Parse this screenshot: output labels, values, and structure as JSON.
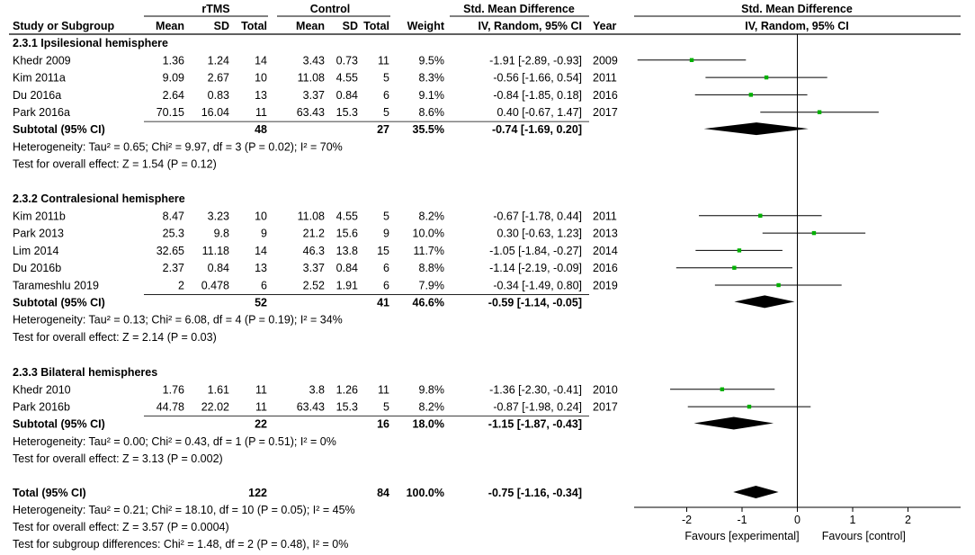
{
  "chart_data": {
    "type": "forest",
    "headers": {
      "group_exp": "rTMS",
      "group_ctrl": "Control",
      "smd_group": "Std. Mean Difference",
      "plot_title": "Std. Mean Difference",
      "col_study": "Study or Subgroup",
      "col_mean": "Mean",
      "col_sd": "SD",
      "col_total": "Total",
      "col_weight": "Weight",
      "col_ci": "IV, Random, 95% CI",
      "col_year": "Year",
      "plot_subtitle": "IV, Random, 95% CI"
    },
    "groups": [
      {
        "title": "2.3.1 Ipsilesional hemisphere",
        "studies": [
          {
            "name": "Khedr 2009",
            "exp_mean": "1.36",
            "exp_sd": "1.24",
            "exp_total": "14",
            "ctrl_mean": "3.43",
            "ctrl_sd": "0.73",
            "ctrl_total": "11",
            "weight": "9.5%",
            "ci_text": "-1.91 [-2.89, -0.93]",
            "year": "2009",
            "smd": -1.91,
            "lo": -2.89,
            "hi": -0.93
          },
          {
            "name": "Kim 2011a",
            "exp_mean": "9.09",
            "exp_sd": "2.67",
            "exp_total": "10",
            "ctrl_mean": "11.08",
            "ctrl_sd": "4.55",
            "ctrl_total": "5",
            "weight": "8.3%",
            "ci_text": "-0.56 [-1.66, 0.54]",
            "year": "2011",
            "smd": -0.56,
            "lo": -1.66,
            "hi": 0.54
          },
          {
            "name": "Du 2016a",
            "exp_mean": "2.64",
            "exp_sd": "0.83",
            "exp_total": "13",
            "ctrl_mean": "3.37",
            "ctrl_sd": "0.84",
            "ctrl_total": "6",
            "weight": "9.1%",
            "ci_text": "-0.84 [-1.85, 0.18]",
            "year": "2016",
            "smd": -0.84,
            "lo": -1.85,
            "hi": 0.18
          },
          {
            "name": "Park 2016a",
            "exp_mean": "70.15",
            "exp_sd": "16.04",
            "exp_total": "11",
            "ctrl_mean": "63.43",
            "ctrl_sd": "15.3",
            "ctrl_total": "5",
            "weight": "8.6%",
            "ci_text": "0.40 [-0.67, 1.47]",
            "year": "2017",
            "smd": 0.4,
            "lo": -0.67,
            "hi": 1.47
          }
        ],
        "subtotal": {
          "label": "Subtotal (95% CI)",
          "exp_total": "48",
          "ctrl_total": "27",
          "weight": "35.5%",
          "ci_text": "-0.74 [-1.69, 0.20]",
          "smd": -0.74,
          "lo": -1.69,
          "hi": 0.2
        },
        "heterogeneity": "Heterogeneity: Tau² = 0.65; Chi² = 9.97, df = 3 (P = 0.02); I² = 70%",
        "overall": "Test for overall effect: Z = 1.54 (P = 0.12)"
      },
      {
        "title": "2.3.2 Contralesional hemisphere",
        "studies": [
          {
            "name": "Kim 2011b",
            "exp_mean": "8.47",
            "exp_sd": "3.23",
            "exp_total": "10",
            "ctrl_mean": "11.08",
            "ctrl_sd": "4.55",
            "ctrl_total": "5",
            "weight": "8.2%",
            "ci_text": "-0.67 [-1.78, 0.44]",
            "year": "2011",
            "smd": -0.67,
            "lo": -1.78,
            "hi": 0.44
          },
          {
            "name": "Park 2013",
            "exp_mean": "25.3",
            "exp_sd": "9.8",
            "exp_total": "9",
            "ctrl_mean": "21.2",
            "ctrl_sd": "15.6",
            "ctrl_total": "9",
            "weight": "10.0%",
            "ci_text": "0.30 [-0.63, 1.23]",
            "year": "2013",
            "smd": 0.3,
            "lo": -0.63,
            "hi": 1.23
          },
          {
            "name": "Lim 2014",
            "exp_mean": "32.65",
            "exp_sd": "11.18",
            "exp_total": "14",
            "ctrl_mean": "46.3",
            "ctrl_sd": "13.8",
            "ctrl_total": "15",
            "weight": "11.7%",
            "ci_text": "-1.05 [-1.84, -0.27]",
            "year": "2014",
            "smd": -1.05,
            "lo": -1.84,
            "hi": -0.27
          },
          {
            "name": "Du 2016b",
            "exp_mean": "2.37",
            "exp_sd": "0.84",
            "exp_total": "13",
            "ctrl_mean": "3.37",
            "ctrl_sd": "0.84",
            "ctrl_total": "6",
            "weight": "8.8%",
            "ci_text": "-1.14 [-2.19, -0.09]",
            "year": "2016",
            "smd": -1.14,
            "lo": -2.19,
            "hi": -0.09
          },
          {
            "name": "Tarameshlu 2019",
            "exp_mean": "2",
            "exp_sd": "0.478",
            "exp_total": "6",
            "ctrl_mean": "2.52",
            "ctrl_sd": "1.91",
            "ctrl_total": "6",
            "weight": "7.9%",
            "ci_text": "-0.34 [-1.49, 0.80]",
            "year": "2019",
            "smd": -0.34,
            "lo": -1.49,
            "hi": 0.8
          }
        ],
        "subtotal": {
          "label": "Subtotal (95% CI)",
          "exp_total": "52",
          "ctrl_total": "41",
          "weight": "46.6%",
          "ci_text": "-0.59 [-1.14, -0.05]",
          "smd": -0.59,
          "lo": -1.14,
          "hi": -0.05
        },
        "heterogeneity": "Heterogeneity: Tau² = 0.13; Chi² = 6.08, df = 4 (P = 0.19); I² = 34%",
        "overall": "Test for overall effect: Z = 2.14 (P = 0.03)"
      },
      {
        "title": "2.3.3 Bilateral hemispheres",
        "studies": [
          {
            "name": "Khedr 2010",
            "exp_mean": "1.76",
            "exp_sd": "1.61",
            "exp_total": "11",
            "ctrl_mean": "3.8",
            "ctrl_sd": "1.26",
            "ctrl_total": "11",
            "weight": "9.8%",
            "ci_text": "-1.36 [-2.30, -0.41]",
            "year": "2010",
            "smd": -1.36,
            "lo": -2.3,
            "hi": -0.41
          },
          {
            "name": "Park 2016b",
            "exp_mean": "44.78",
            "exp_sd": "22.02",
            "exp_total": "11",
            "ctrl_mean": "63.43",
            "ctrl_sd": "15.3",
            "ctrl_total": "5",
            "weight": "8.2%",
            "ci_text": "-0.87 [-1.98, 0.24]",
            "year": "2017",
            "smd": -0.87,
            "lo": -1.98,
            "hi": 0.24
          }
        ],
        "subtotal": {
          "label": "Subtotal (95% CI)",
          "exp_total": "22",
          "ctrl_total": "16",
          "weight": "18.0%",
          "ci_text": "-1.15 [-1.87, -0.43]",
          "smd": -1.15,
          "lo": -1.87,
          "hi": -0.43
        },
        "heterogeneity": "Heterogeneity: Tau² = 0.00; Chi² = 0.43, df = 1 (P = 0.51); I² = 0%",
        "overall": "Test for overall effect: Z = 3.13 (P = 0.002)"
      }
    ],
    "total": {
      "label": "Total (95% CI)",
      "exp_total": "122",
      "ctrl_total": "84",
      "weight": "100.0%",
      "ci_text": "-0.75 [-1.16, -0.34]",
      "smd": -0.75,
      "lo": -1.16,
      "hi": -0.34,
      "heterogeneity": "Heterogeneity: Tau² = 0.21; Chi² = 18.10, df = 10 (P = 0.05); I² = 45%",
      "overall": "Test for overall effect: Z = 3.57 (P = 0.0004)",
      "subgroup": "Test for subgroup differences: Chi² = 1.48, df = 2 (P = 0.48), I² = 0%"
    },
    "axis": {
      "xlim": [
        -3,
        3
      ],
      "ticks": [
        -2,
        -1,
        0,
        1,
        2
      ],
      "tick_labels": [
        "-2",
        "-1",
        "0",
        "1",
        "2"
      ],
      "label_left": "Favours [experimental]",
      "label_right": "Favours [control]"
    },
    "colors": {
      "point": "#00b000",
      "line": "#000000",
      "diamond": "#000000"
    }
  }
}
